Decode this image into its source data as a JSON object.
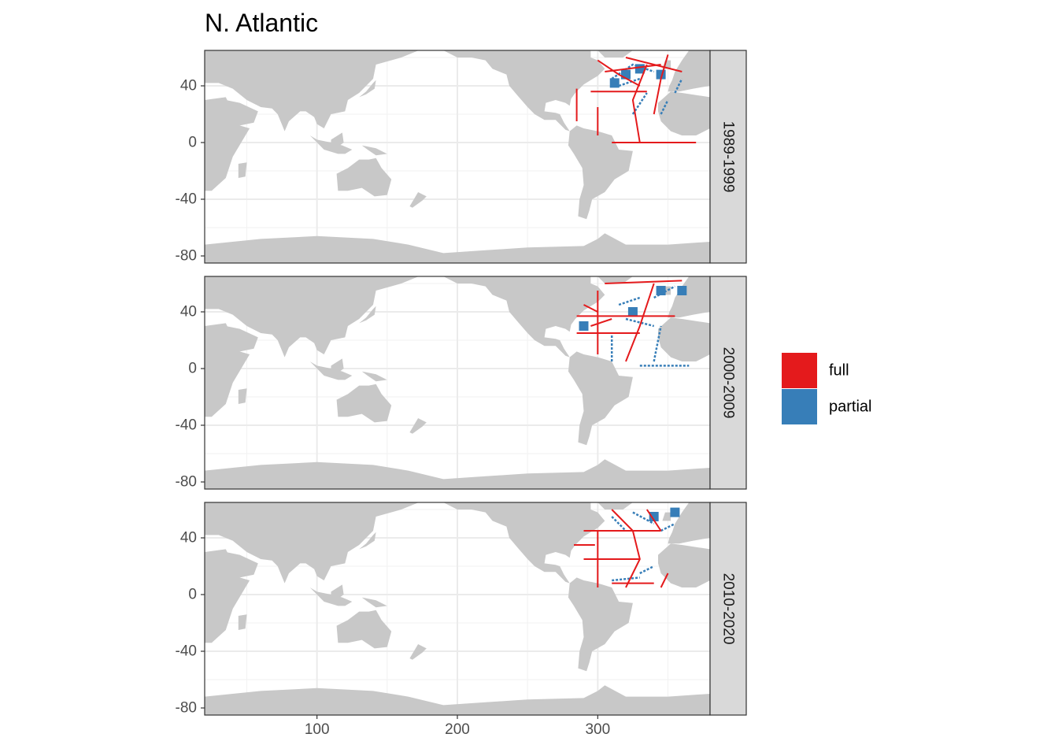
{
  "chart_data": {
    "type": "heatmap",
    "title": "N. Atlantic",
    "xlabel": "",
    "ylabel": "",
    "xlim": [
      20,
      380
    ],
    "ylim": [
      -85,
      65
    ],
    "x_ticks": [
      100,
      200,
      300
    ],
    "y_ticks": [
      40,
      0,
      -40,
      -80
    ],
    "x_tick_labels": [
      "100",
      "200",
      "300"
    ],
    "y_tick_labels": [
      "40",
      "0",
      "-40",
      "-80"
    ],
    "grid": true,
    "legend_position": "right",
    "background_land_color": "#c8c8c8",
    "legend": [
      {
        "label": "full",
        "color": "#e41a1c"
      },
      {
        "label": "partial",
        "color": "#377eb8"
      }
    ],
    "facets": [
      {
        "label": "1989-1999",
        "full_lines": [
          [
            [
              295,
              36
            ],
            [
              335,
              36
            ]
          ],
          [
            [
              300,
              5
            ],
            [
              300,
              25
            ]
          ],
          [
            [
              285,
              15
            ],
            [
              285,
              38
            ]
          ],
          [
            [
              330,
              0
            ],
            [
              325,
              30
            ],
            [
              335,
              55
            ]
          ],
          [
            [
              305,
              50
            ],
            [
              345,
              55
            ]
          ],
          [
            [
              320,
              60
            ],
            [
              360,
              50
            ]
          ],
          [
            [
              340,
              20
            ],
            [
              345,
              45
            ],
            [
              350,
              62
            ]
          ],
          [
            [
              300,
              58
            ],
            [
              315,
              48
            ],
            [
              330,
              40
            ]
          ],
          [
            [
              310,
              0
            ],
            [
              370,
              0
            ]
          ]
        ],
        "partial_lines": [
          [
            [
              310,
              45
            ],
            [
              325,
              55
            ],
            [
              340,
              50
            ]
          ],
          [
            [
              315,
              40
            ],
            [
              330,
              45
            ]
          ],
          [
            [
              325,
              20
            ],
            [
              335,
              35
            ]
          ],
          [
            [
              345,
              20
            ],
            [
              350,
              30
            ]
          ],
          [
            [
              355,
              35
            ],
            [
              360,
              45
            ]
          ]
        ],
        "partial_blobs": [
          [
            320,
            48
          ],
          [
            330,
            52
          ],
          [
            345,
            48
          ],
          [
            312,
            42
          ]
        ]
      },
      {
        "label": "2000-2009",
        "full_lines": [
          [
            [
              285,
              37
            ],
            [
              355,
              37
            ]
          ],
          [
            [
              285,
              25
            ],
            [
              330,
              25
            ]
          ],
          [
            [
              300,
              10
            ],
            [
              300,
              55
            ]
          ],
          [
            [
              320,
              5
            ],
            [
              330,
              30
            ],
            [
              340,
              60
            ]
          ],
          [
            [
              305,
              60
            ],
            [
              360,
              62
            ]
          ],
          [
            [
              290,
              45
            ],
            [
              300,
              40
            ]
          ],
          [
            [
              295,
              30
            ],
            [
              310,
              35
            ]
          ]
        ],
        "partial_lines": [
          [
            [
              310,
              5
            ],
            [
              310,
              25
            ]
          ],
          [
            [
              340,
              5
            ],
            [
              345,
              30
            ]
          ],
          [
            [
              330,
              2
            ],
            [
              365,
              2
            ]
          ],
          [
            [
              315,
              45
            ],
            [
              330,
              50
            ]
          ],
          [
            [
              320,
              35
            ],
            [
              340,
              30
            ]
          ],
          [
            [
              340,
              50
            ],
            [
              355,
              58
            ]
          ]
        ],
        "partial_blobs": [
          [
            345,
            55
          ],
          [
            360,
            55
          ],
          [
            325,
            40
          ],
          [
            290,
            30
          ]
        ]
      },
      {
        "label": "2010-2020",
        "full_lines": [
          [
            [
              290,
              45
            ],
            [
              345,
              45
            ]
          ],
          [
            [
              290,
              25
            ],
            [
              330,
              25
            ]
          ],
          [
            [
              300,
              5
            ],
            [
              300,
              45
            ]
          ],
          [
            [
              310,
              60
            ],
            [
              325,
              45
            ],
            [
              330,
              25
            ],
            [
              320,
              5
            ]
          ],
          [
            [
              335,
              60
            ],
            [
              345,
              45
            ]
          ],
          [
            [
              310,
              8
            ],
            [
              340,
              8
            ]
          ],
          [
            [
              283,
              35
            ],
            [
              298,
              35
            ]
          ],
          [
            [
              345,
              5
            ],
            [
              350,
              15
            ]
          ]
        ],
        "partial_lines": [
          [
            [
              310,
              55
            ],
            [
              320,
              45
            ]
          ],
          [
            [
              325,
              58
            ],
            [
              340,
              50
            ]
          ],
          [
            [
              330,
              15
            ],
            [
              340,
              20
            ]
          ],
          [
            [
              310,
              10
            ],
            [
              330,
              12
            ]
          ],
          [
            [
              345,
              45
            ],
            [
              355,
              50
            ]
          ]
        ],
        "partial_blobs": [
          [
            340,
            55
          ],
          [
            355,
            58
          ]
        ]
      }
    ]
  }
}
